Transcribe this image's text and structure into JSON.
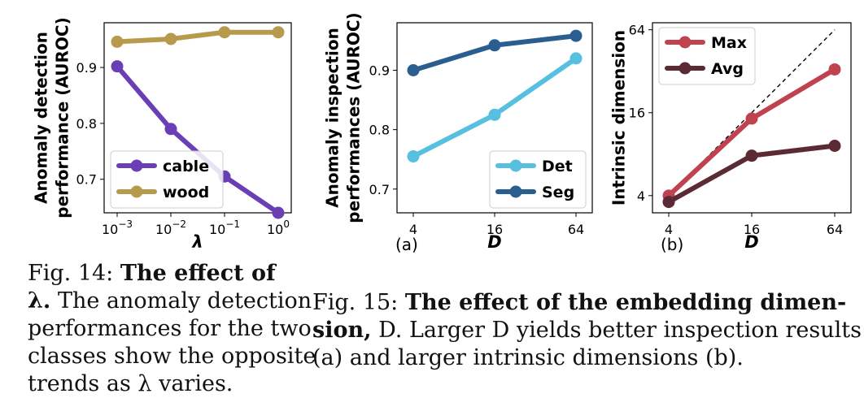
{
  "chart_data": [
    {
      "type": "line",
      "xlabel": "λ",
      "ylabel": [
        "Anomaly detection",
        "performance (AUROC)"
      ],
      "x_scale": "log",
      "x": [
        0.001,
        0.01,
        0.1,
        1
      ],
      "xtick_labels": [
        {
          "base": "10",
          "exp": "−3"
        },
        {
          "base": "10",
          "exp": "−2"
        },
        {
          "base": "10",
          "exp": "−1"
        },
        {
          "base": "10",
          "exp": "0"
        }
      ],
      "yticks": [
        0.7,
        0.8,
        0.9
      ],
      "ytick_labels": [
        "0.7",
        "0.8",
        "0.9"
      ],
      "ylim": [
        0.64,
        0.98
      ],
      "legend": "bottom-left",
      "series": [
        {
          "name": "cable",
          "color": "#6a3fb5",
          "values": [
            0.902,
            0.79,
            0.705,
            0.64
          ]
        },
        {
          "name": "wood",
          "color": "#b89a4c",
          "values": [
            0.946,
            0.951,
            0.963,
            0.963
          ]
        }
      ]
    },
    {
      "type": "line",
      "xlabel": "D",
      "ylabel": [
        "Anomaly inspection",
        "performances (AUROC)"
      ],
      "x_scale": "log",
      "x": [
        4,
        16,
        64
      ],
      "xtick_labels": [
        "4",
        "16",
        "64"
      ],
      "yticks": [
        0.7,
        0.8,
        0.9
      ],
      "ytick_labels": [
        "0.7",
        "0.8",
        "0.9"
      ],
      "ylim": [
        0.66,
        0.98
      ],
      "legend": "bottom-right",
      "panel_label": "(a)",
      "series": [
        {
          "name": "Det",
          "color": "#57bfe0",
          "values": [
            0.755,
            0.825,
            0.92
          ]
        },
        {
          "name": "Seg",
          "color": "#2a5d90",
          "values": [
            0.9,
            0.942,
            0.958
          ]
        }
      ]
    },
    {
      "type": "line",
      "xlabel": "D",
      "ylabel": [
        "Intrinsic dimension"
      ],
      "x_scale": "log",
      "y_scale": "log",
      "x": [
        4,
        16,
        64
      ],
      "xtick_labels": [
        "4",
        "16",
        "64"
      ],
      "yticks": [
        4,
        16,
        64
      ],
      "ytick_labels": [
        "4",
        "16",
        "64"
      ],
      "ylim": [
        3,
        72
      ],
      "legend": "top-left",
      "panel_label": "(b)",
      "reference_line": "dashed y = x",
      "series": [
        {
          "name": "Max",
          "color": "#c0424f",
          "values": [
            4.0,
            14.5,
            33
          ]
        },
        {
          "name": "Avg",
          "color": "#5c2a35",
          "values": [
            3.6,
            7.8,
            9.2
          ]
        }
      ]
    }
  ],
  "captions": {
    "fig14": {
      "label": "Fig. 14:",
      "bold": "The effect of",
      "bold2": "λ.",
      "text": [
        "The anomaly detection",
        "performances for the two",
        "classes show the opposite",
        "trends as λ varies."
      ]
    },
    "fig15": {
      "label": "Fig. 15:",
      "bold": "The effect of the embedding dimen-",
      "bold2": "sion,",
      "text1": "D. Larger D yields better inspection results",
      "text2": "(a) and larger intrinsic dimensions (b)."
    }
  }
}
